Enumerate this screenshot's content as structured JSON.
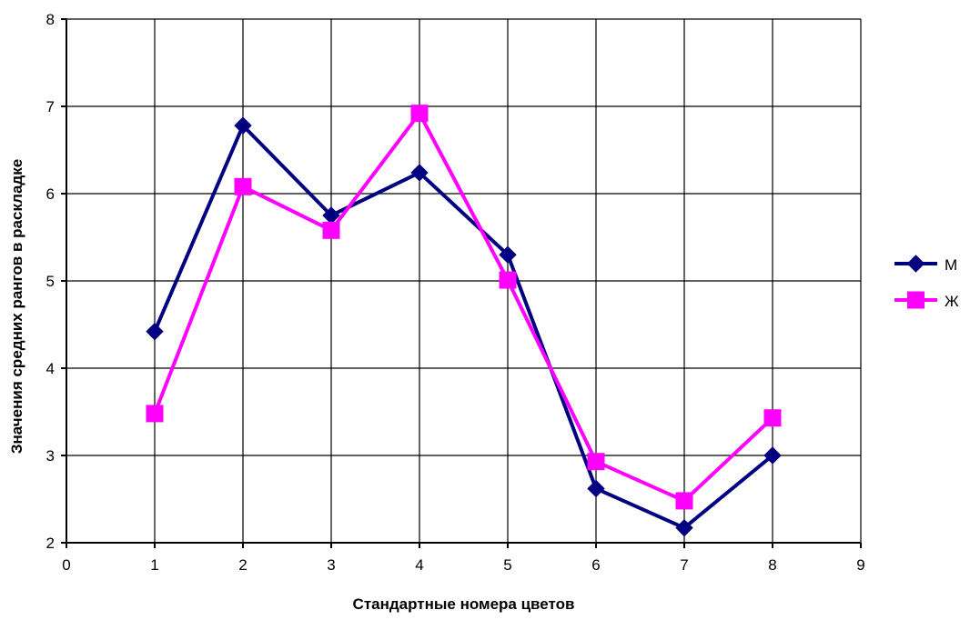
{
  "chart_data": {
    "type": "line",
    "title": "",
    "xlabel": "Стандартные номера цветов",
    "ylabel": "Значения средних рангов в раскладке",
    "xlim": [
      0,
      9
    ],
    "ylim": [
      2,
      8
    ],
    "x_ticks": [
      "0",
      "1",
      "2",
      "3",
      "4",
      "5",
      "6",
      "7",
      "8",
      "9"
    ],
    "y_ticks": [
      "2",
      "3",
      "4",
      "5",
      "6",
      "7",
      "8"
    ],
    "grid": true,
    "legend_position": "right",
    "x": [
      1,
      2,
      3,
      4,
      5,
      6,
      7,
      8
    ],
    "series": [
      {
        "name": "М",
        "color": "#000080",
        "marker": "diamond",
        "values": [
          4.42,
          6.78,
          5.75,
          6.24,
          5.3,
          2.62,
          2.17,
          3.0
        ]
      },
      {
        "name": "Ж",
        "color": "#ff00ff",
        "marker": "square",
        "values": [
          3.48,
          6.08,
          5.58,
          6.92,
          5.01,
          2.93,
          2.48,
          3.43
        ]
      }
    ]
  }
}
